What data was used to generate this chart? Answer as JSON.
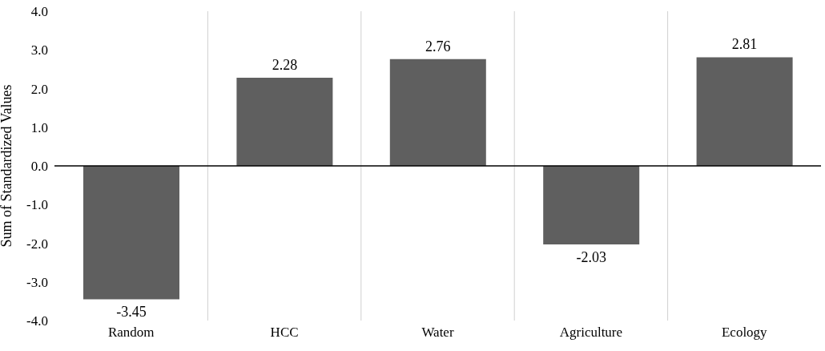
{
  "chart_data": {
    "type": "bar",
    "ylabel": "Sum of Standardized Values",
    "categories": [
      "Random",
      "HCC",
      "Water",
      "Agriculture",
      "Ecology"
    ],
    "values": [
      -3.45,
      2.28,
      2.76,
      -2.03,
      2.81
    ],
    "color": "#5f5f5f",
    "ylim": [
      -4,
      4
    ],
    "yticks": [
      {
        "value": -4,
        "label": "-4.0"
      },
      {
        "value": -3,
        "label": "-3.0"
      },
      {
        "value": -2,
        "label": "-2.0"
      },
      {
        "value": -1,
        "label": "-1.0"
      },
      {
        "value": 0,
        "label": "0.0"
      },
      {
        "value": 1,
        "label": "1.0"
      },
      {
        "value": 2,
        "label": "2.0"
      },
      {
        "value": 3,
        "label": "3.0"
      },
      {
        "value": 4,
        "label": "4.0"
      }
    ],
    "grid": "x",
    "data_labels": true
  }
}
